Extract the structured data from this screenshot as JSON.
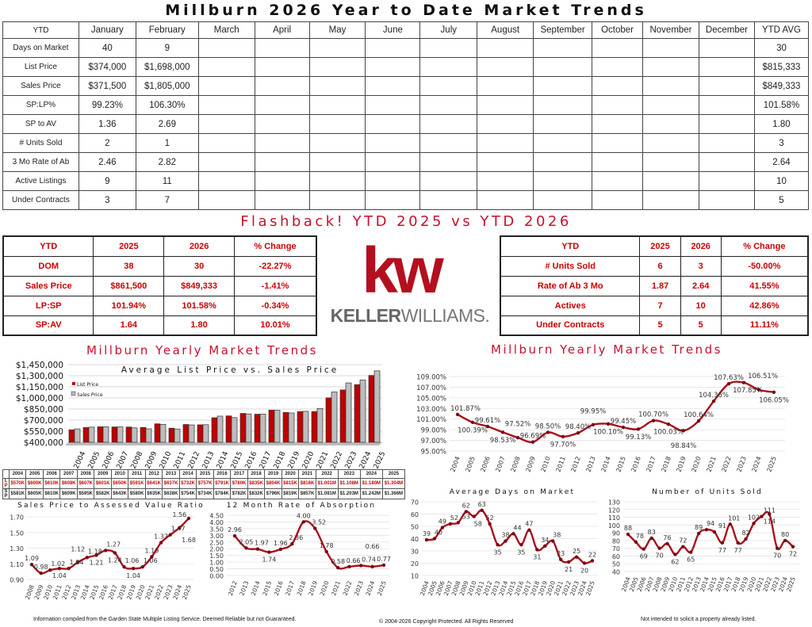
{
  "title": "Millburn 2026 Year to Date Market Trends",
  "ytd_table": {
    "headers": [
      "YTD",
      "January",
      "February",
      "March",
      "April",
      "May",
      "June",
      "July",
      "August",
      "September",
      "October",
      "November",
      "December",
      "YTD AVG"
    ],
    "rows": [
      {
        "label": "Days on Market",
        "values": [
          "40",
          "9"
        ],
        "avg": "30"
      },
      {
        "label": "List Price",
        "values": [
          "$374,000",
          "$1,698,000"
        ],
        "avg": "$815,333"
      },
      {
        "label": "Sales Price",
        "values": [
          "$371,500",
          "$1,805,000"
        ],
        "avg": "$849,333"
      },
      {
        "label": "SP:LP%",
        "values": [
          "99.23%",
          "106.30%"
        ],
        "avg": "101.58%"
      },
      {
        "label": "SP to AV",
        "values": [
          "1.36",
          "2.69"
        ],
        "avg": "1.80"
      },
      {
        "label": "# Units Sold",
        "values": [
          "2",
          "1"
        ],
        "avg": "3"
      },
      {
        "label": "3 Mo Rate of Ab",
        "values": [
          "2.46",
          "2.82"
        ],
        "avg": "2.64"
      },
      {
        "label": "Active Listings",
        "values": [
          "9",
          "11"
        ],
        "avg": "10"
      },
      {
        "label": "Under Contracts",
        "values": [
          "3",
          "7"
        ],
        "avg": "5"
      }
    ]
  },
  "flashback": {
    "title": "Flashback!  YTD 2025 vs YTD 2026",
    "left": {
      "headers": [
        "YTD",
        "2025",
        "2026",
        "% Change"
      ],
      "rows": [
        [
          "DOM",
          "38",
          "30",
          "-22.27%"
        ],
        [
          "Sales Price",
          "$861,500",
          "$849,333",
          "-1.41%"
        ],
        [
          "LP:SP",
          "101.94%",
          "101.58%",
          "-0.34%"
        ],
        [
          "SP:AV",
          "1.64",
          "1.80",
          "10.01%"
        ]
      ]
    },
    "right": {
      "headers": [
        "YTD",
        "2025",
        "2026",
        "% Change"
      ],
      "rows": [
        [
          "# Units Sold",
          "6",
          "3",
          "-50.00%"
        ],
        [
          "Rate of Ab 3 Mo",
          "1.87",
          "2.64",
          "41.55%"
        ],
        [
          "Actives",
          "7",
          "10",
          "42.86%"
        ],
        [
          "Under Contracts",
          "5",
          "5",
          "11.11%"
        ]
      ]
    }
  },
  "logo": {
    "mark": "kw",
    "bold": "KELLER",
    "rest": "WILLIAMS."
  },
  "trends_title_left": "Millburn Yearly Market Trends",
  "trends_title_right": "Millburn Yearly Market Trends",
  "colors": {
    "accent": "#c8102e",
    "line": "#a8101e",
    "bar_list": "#c00000",
    "bar_sales": "#bdbdbd"
  },
  "chart_data": [
    {
      "type": "bar",
      "title": "Average List Price vs. Sales Price",
      "categories": [
        "2004",
        "2005",
        "2006",
        "2007",
        "2008",
        "2009",
        "2010",
        "2011",
        "2012",
        "2013",
        "2014",
        "2015",
        "2016",
        "2017",
        "2018",
        "2019",
        "2020",
        "2021",
        "2022",
        "2023",
        "2024",
        "2025"
      ],
      "series": [
        {
          "name": "List Price",
          "values": [
            570000,
            600000,
            610000,
            608000,
            607000,
            601000,
            650000,
            591000,
            641000,
            637000,
            732000,
            757000,
            791000,
            780000,
            835000,
            804000,
            815000,
            816000,
            1001000,
            1108000,
            1180000,
            1304000
          ]
        },
        {
          "name": "Sales Price",
          "values": [
            581000,
            605000,
            610000,
            609000,
            595000,
            582000,
            643000,
            580000,
            635000,
            638000,
            754000,
            734000,
            784000,
            782000,
            832000,
            796000,
            819000,
            857000,
            1081000,
            1203000,
            1242000,
            1366000
          ]
        }
      ],
      "ylim": [
        400000,
        1450000
      ],
      "yticks": [
        "$400,000",
        "$550,000",
        "$700,000",
        "$850,000",
        "$1,000,000",
        "$1,150,000",
        "$1,300,000",
        "$1,450,000"
      ],
      "legend": "top-left",
      "table": {
        "row_labels": [
          "L P",
          "S P"
        ],
        "list": [
          "$570K",
          "$600K",
          "$610K",
          "$608K",
          "$607K",
          "$601K",
          "$650K",
          "$591K",
          "$641K",
          "$637K",
          "$732K",
          "$757K",
          "$791K",
          "$780K",
          "$835K",
          "$804K",
          "$815K",
          "$816K",
          "$1.001M",
          "$1.108M",
          "$1.180M",
          "$1.304M"
        ],
        "sales": [
          "$581K",
          "$605K",
          "$610K",
          "$609K",
          "$595K",
          "$582K",
          "$643K",
          "$580K",
          "$635K",
          "$638K",
          "$754K",
          "$734K",
          "$784K",
          "$782K",
          "$832K",
          "$796K",
          "$819K",
          "$857K",
          "$1.081M",
          "$1.203M",
          "$1.242M",
          "$1.366M"
        ]
      }
    },
    {
      "type": "line",
      "title": "",
      "categories": [
        "2004",
        "2005",
        "2006",
        "2007",
        "2008",
        "2009",
        "2010",
        "2011",
        "2012",
        "2013",
        "2014",
        "2015",
        "2016",
        "2017",
        "2018",
        "2019",
        "2020",
        "2021",
        "2022",
        "2023",
        "2024",
        "2025"
      ],
      "values": [
        101.87,
        100.39,
        99.61,
        98.53,
        97.52,
        96.69,
        98.5,
        97.7,
        98.4,
        99.95,
        100.1,
        99.45,
        99.13,
        100.7,
        100.03,
        98.84,
        100.64,
        104.36,
        107.63,
        107.85,
        106.51,
        106.05
      ],
      "labels": [
        "101.87%",
        "100.39%",
        "99.61%",
        "98.53%",
        "97.52%",
        "96.69%",
        "98.50%",
        "97.70%",
        "98.40%",
        "99.95%",
        "100.10%",
        "99.45%",
        "99.13%",
        "100.70%",
        "100.03%",
        "98.84%",
        "100.64%",
        "104.36%",
        "107.63%",
        "107.85%",
        "106.51%",
        "106.05%"
      ],
      "ylim": [
        95,
        109
      ],
      "yticks": [
        "95.00%",
        "97.00%",
        "99.00%",
        "101.00%",
        "103.00%",
        "105.00%",
        "107.00%",
        "109.00%"
      ],
      "grid": true
    },
    {
      "type": "line",
      "title": "Sales Price to Assessed Value Ratio",
      "categories": [
        "2008",
        "2009",
        "2010",
        "2011",
        "2012",
        "2013",
        "2014",
        "2015",
        "2016",
        "2017",
        "2018",
        "2019",
        "2020",
        "2021",
        "2022",
        "2023",
        "2024",
        "2025"
      ],
      "values": [
        1.09,
        0.98,
        1.02,
        1.04,
        1.04,
        1.12,
        1.18,
        1.21,
        1.27,
        1.24,
        1.06,
        1.04,
        1.06,
        1.19,
        1.37,
        1.47,
        1.56,
        1.68
      ],
      "labels": [
        "1.09",
        "0.98",
        "1.02",
        "1.04",
        "1.04",
        "1.12",
        "1.18",
        "1.21",
        "1.27",
        "1.24",
        "1.06",
        "1.04",
        "1.06",
        "1.19",
        "1.37",
        "1.47",
        "1.56",
        "1.68"
      ],
      "ylim": [
        0.9,
        1.7
      ],
      "yticks": [
        "0.90",
        "1.10",
        "1.30",
        "1.50",
        "1.70"
      ],
      "grid": true
    },
    {
      "type": "line",
      "title": "12 Month Rate of Absorption",
      "categories": [
        "2012",
        "2013",
        "2014",
        "2015",
        "2016",
        "2017",
        "2018",
        "2019",
        "2020",
        "2021",
        "2022",
        "2023",
        "2024",
        "2025"
      ],
      "values": [
        2.96,
        2.05,
        1.97,
        1.74,
        1.96,
        2.36,
        4.0,
        3.52,
        1.78,
        0.58,
        0.66,
        0.74,
        0.66,
        0.77
      ],
      "labels": [
        "2.96",
        "2.05",
        "1.97",
        "1.74",
        "1.96",
        "2.36",
        "4.00",
        "3.52",
        "1.78",
        "0.58",
        "0.66",
        "0.74",
        "0.66",
        "0.77"
      ],
      "ylim": [
        0,
        4.5
      ],
      "yticks": [
        "0.00",
        "0.50",
        "1.00",
        "1.50",
        "2.00",
        "2.50",
        "3.00",
        "3.50",
        "4.00",
        "4.50"
      ],
      "grid": true
    },
    {
      "type": "line",
      "title": "Average Days on Market",
      "categories": [
        "2004",
        "2005",
        "2006",
        "2007",
        "2008",
        "2009",
        "2010",
        "2011",
        "2012",
        "2013",
        "2014",
        "2015",
        "2016",
        "2017",
        "2018",
        "2019",
        "2020",
        "2021",
        "2022",
        "2023",
        "2024",
        "2025"
      ],
      "values": [
        39,
        40,
        49,
        52,
        53,
        62,
        58,
        63,
        52,
        35,
        38,
        44,
        35,
        47,
        31,
        34,
        38,
        23,
        21,
        25,
        20,
        22
      ],
      "labels": [
        "39",
        "40",
        "49",
        "52",
        "53",
        "62",
        "58",
        "63",
        "52",
        "35",
        "38",
        "44",
        "35",
        "47",
        "31",
        "34",
        "38",
        "23",
        "21",
        "25",
        "20",
        "22"
      ],
      "ylim": [
        10,
        70
      ],
      "yticks": [
        "10",
        "20",
        "30",
        "40",
        "50",
        "60",
        "70"
      ],
      "grid": true
    },
    {
      "type": "line",
      "title": "Number of Units Sold",
      "categories": [
        "2004",
        "2005",
        "2006",
        "2007",
        "2008",
        "2009",
        "2010",
        "2011",
        "2012",
        "2013",
        "2014",
        "2015",
        "2016",
        "2017",
        "2018",
        "2019",
        "2020",
        "2021",
        "2022",
        "2023",
        "2024",
        "2025"
      ],
      "values": [
        88,
        78,
        69,
        83,
        70,
        76,
        62,
        72,
        65,
        89,
        94,
        91,
        77,
        101,
        77,
        82,
        102,
        111,
        114,
        70,
        80,
        72
      ],
      "labels": [
        "88",
        "78",
        "69",
        "83",
        "70",
        "76",
        "62",
        "72",
        "65",
        "89",
        "94",
        "91",
        "77",
        "101",
        "77",
        "82",
        "102",
        "111",
        "114",
        "70",
        "80",
        "72"
      ],
      "ylim": [
        40,
        130
      ],
      "yticks": [
        "40",
        "50",
        "60",
        "70",
        "80",
        "90",
        "100",
        "110",
        "120",
        "130"
      ],
      "grid": true
    }
  ],
  "footer": {
    "left": "Information compiled from the Garden State Multiple Listing Service.  Deemed Reliable but not Guaranteed.",
    "center": "© 2004-2026 Copyright Protected.  All Rights Reserved",
    "right": "Not intended to solicit a property already listed."
  }
}
